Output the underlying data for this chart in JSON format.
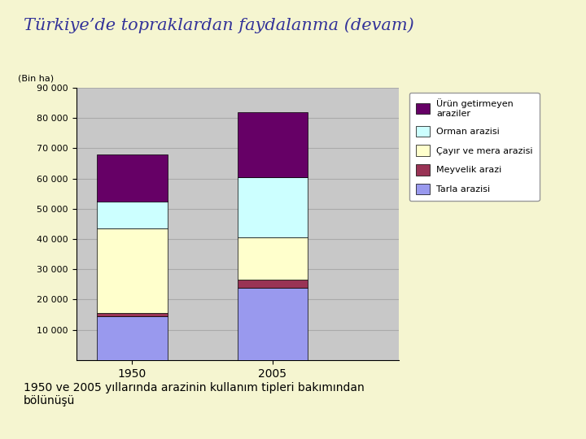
{
  "title": "Türkiye’de topraklardan faydalanma (devam)",
  "subtitle": "1950 ve 2005 yıllarında arazinin kullanım tipleri bakımından bölünüşü",
  "years": [
    "1950",
    "2005"
  ],
  "legend_labels": [
    "Ürün getirmeyen\naraziler",
    "Orman arazisi",
    "Çayır ve mera arazisi",
    "Meyvelik arazi",
    "Tarla arazisi"
  ],
  "values_1950": [
    14500,
    1000,
    28000,
    9000,
    15500
  ],
  "values_2005": [
    24000,
    2500,
    14000,
    20000,
    21500
  ],
  "colors": [
    "#9999ee",
    "#993355",
    "#ffffcc",
    "#ccffff",
    "#660066"
  ],
  "ylim": [
    0,
    90000
  ],
  "yticks": [
    10000,
    20000,
    30000,
    40000,
    50000,
    60000,
    70000,
    80000,
    90000
  ],
  "ytick_labels": [
    "10 000",
    "20 000",
    "30 000",
    "40 000",
    "50 000",
    "60 000",
    "70 000",
    "80 000",
    "90 000"
  ],
  "ylabel": "(Bin ha)",
  "background_color": "#f5f5d0",
  "plot_bg_color": "#c8c8c8"
}
